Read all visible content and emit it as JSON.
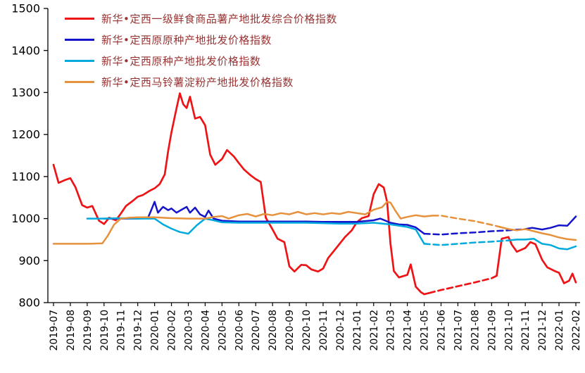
{
  "chart_data": {
    "type": "line",
    "title": "",
    "legend_position": "top-left",
    "grid": false,
    "x_labels": [
      "2019-07",
      "2019-08",
      "2019-09",
      "2019-10",
      "2019-11",
      "2019-12",
      "2020-01",
      "2020-02",
      "2020-03",
      "2020-04",
      "2020-05",
      "2020-06",
      "2020-07",
      "2020-08",
      "2020-09",
      "2020-10",
      "2020-11",
      "2020-12",
      "2021-01",
      "2021-02",
      "2021-03",
      "2021-04",
      "2021-05",
      "2021-06",
      "2021-07",
      "2021-08",
      "2021-09",
      "2021-10",
      "2021-11",
      "2021-12",
      "2022-01",
      "2022-02"
    ],
    "y_axis": {
      "min": 800,
      "max": 1500,
      "step": 100
    },
    "series": [
      {
        "name": "新华•定西一级鲜食商品薯产地批发综合价格指数",
        "color": "#ee1416",
        "width": 2.7,
        "dash_ranges": [
          [
            22.3,
            26.3
          ]
        ],
        "points": [
          [
            0,
            1128
          ],
          [
            0.3,
            1085
          ],
          [
            0.7,
            1092
          ],
          [
            1,
            1096
          ],
          [
            1.3,
            1075
          ],
          [
            1.7,
            1032
          ],
          [
            2,
            1026
          ],
          [
            2.3,
            1030
          ],
          [
            2.7,
            995
          ],
          [
            3,
            987
          ],
          [
            3.3,
            1002
          ],
          [
            3.7,
            996
          ],
          [
            4,
            1012
          ],
          [
            4.3,
            1030
          ],
          [
            4.7,
            1042
          ],
          [
            5,
            1052
          ],
          [
            5.3,
            1056
          ],
          [
            5.7,
            1066
          ],
          [
            6,
            1072
          ],
          [
            6.3,
            1082
          ],
          [
            6.6,
            1105
          ],
          [
            6.8,
            1160
          ],
          [
            7,
            1205
          ],
          [
            7.3,
            1262
          ],
          [
            7.5,
            1298
          ],
          [
            7.7,
            1272
          ],
          [
            7.9,
            1263
          ],
          [
            8.1,
            1290
          ],
          [
            8.4,
            1238
          ],
          [
            8.7,
            1242
          ],
          [
            9,
            1222
          ],
          [
            9.3,
            1152
          ],
          [
            9.6,
            1128
          ],
          [
            10,
            1142
          ],
          [
            10.3,
            1163
          ],
          [
            10.7,
            1148
          ],
          [
            11,
            1132
          ],
          [
            11.3,
            1117
          ],
          [
            11.7,
            1103
          ],
          [
            12,
            1094
          ],
          [
            12.3,
            1087
          ],
          [
            12.6,
            1002
          ],
          [
            13,
            974
          ],
          [
            13.3,
            952
          ],
          [
            13.7,
            944
          ],
          [
            14,
            886
          ],
          [
            14.3,
            874
          ],
          [
            14.7,
            890
          ],
          [
            15,
            889
          ],
          [
            15.3,
            879
          ],
          [
            15.7,
            874
          ],
          [
            16,
            881
          ],
          [
            16.3,
            906
          ],
          [
            16.7,
            926
          ],
          [
            17,
            941
          ],
          [
            17.3,
            956
          ],
          [
            17.7,
            972
          ],
          [
            18,
            991
          ],
          [
            18.3,
            1001
          ],
          [
            18.7,
            1006
          ],
          [
            19,
            1058
          ],
          [
            19.3,
            1082
          ],
          [
            19.6,
            1074
          ],
          [
            19.8,
            1040
          ],
          [
            20,
            940
          ],
          [
            20.2,
            875
          ],
          [
            20.5,
            860
          ],
          [
            21,
            866
          ],
          [
            21.2,
            891
          ],
          [
            21.5,
            838
          ],
          [
            21.8,
            825
          ],
          [
            22,
            820
          ],
          [
            22.3,
            823
          ],
          [
            23,
            830
          ],
          [
            24,
            839
          ],
          [
            25,
            848
          ],
          [
            26,
            858
          ],
          [
            26.3,
            864
          ],
          [
            26.6,
            952
          ],
          [
            27,
            956
          ],
          [
            27.2,
            938
          ],
          [
            27.5,
            921
          ],
          [
            28,
            930
          ],
          [
            28.3,
            944
          ],
          [
            28.6,
            939
          ],
          [
            29,
            902
          ],
          [
            29.3,
            884
          ],
          [
            29.7,
            876
          ],
          [
            30,
            871
          ],
          [
            30.3,
            846
          ],
          [
            30.6,
            852
          ],
          [
            30.8,
            869
          ],
          [
            31,
            848
          ]
        ]
      },
      {
        "name": "新华•定西原原种产地批发价格指数",
        "color": "#1414cc",
        "width": 2.5,
        "dash_ranges": [
          [
            22,
            28
          ]
        ],
        "points": [
          [
            3,
            1000
          ],
          [
            4,
            1000
          ],
          [
            5,
            1000
          ],
          [
            5.6,
            1001
          ],
          [
            5.8,
            1020
          ],
          [
            6,
            1040
          ],
          [
            6.2,
            1014
          ],
          [
            6.5,
            1028
          ],
          [
            6.8,
            1020
          ],
          [
            7,
            1024
          ],
          [
            7.3,
            1014
          ],
          [
            7.6,
            1021
          ],
          [
            7.9,
            1028
          ],
          [
            8.1,
            1014
          ],
          [
            8.4,
            1026
          ],
          [
            8.7,
            1010
          ],
          [
            9,
            1004
          ],
          [
            9.2,
            1019
          ],
          [
            9.5,
            1000
          ],
          [
            10,
            995
          ],
          [
            11,
            993
          ],
          [
            12,
            993
          ],
          [
            13,
            993
          ],
          [
            14,
            993
          ],
          [
            15,
            993
          ],
          [
            16,
            992
          ],
          [
            17,
            992
          ],
          [
            18,
            992
          ],
          [
            19,
            996
          ],
          [
            19.4,
            1000
          ],
          [
            20,
            990
          ],
          [
            20.5,
            986
          ],
          [
            21,
            985
          ],
          [
            21.5,
            979
          ],
          [
            22,
            964
          ],
          [
            23,
            962
          ],
          [
            24,
            965
          ],
          [
            25,
            967
          ],
          [
            26,
            970
          ],
          [
            27,
            972
          ],
          [
            28,
            975
          ],
          [
            28.4,
            978
          ],
          [
            29,
            974
          ],
          [
            29.5,
            978
          ],
          [
            30,
            984
          ],
          [
            30.5,
            983
          ],
          [
            31,
            1005
          ]
        ]
      },
      {
        "name": "新华•定西原种产地批发价格指数",
        "color": "#00aadd",
        "width": 2.5,
        "dash_ranges": [
          [
            22,
            27
          ]
        ],
        "points": [
          [
            2,
            1000
          ],
          [
            3,
            1000
          ],
          [
            4,
            1001
          ],
          [
            5,
            1000
          ],
          [
            6,
            1000
          ],
          [
            6.5,
            986
          ],
          [
            7,
            976
          ],
          [
            7.5,
            968
          ],
          [
            8,
            964
          ],
          [
            8.5,
            984
          ],
          [
            9,
            1000
          ],
          [
            9.5,
            996
          ],
          [
            10,
            991
          ],
          [
            11,
            990
          ],
          [
            12,
            990
          ],
          [
            13,
            990
          ],
          [
            14,
            990
          ],
          [
            15,
            990
          ],
          [
            16,
            989
          ],
          [
            17,
            988
          ],
          [
            18,
            988
          ],
          [
            19,
            990
          ],
          [
            20,
            986
          ],
          [
            21,
            980
          ],
          [
            21.5,
            974
          ],
          [
            22,
            940
          ],
          [
            23,
            937
          ],
          [
            24,
            940
          ],
          [
            25,
            943
          ],
          [
            26,
            945
          ],
          [
            27,
            948
          ],
          [
            27.5,
            950
          ],
          [
            28,
            950
          ],
          [
            28.5,
            952
          ],
          [
            29,
            940
          ],
          [
            29.5,
            937
          ],
          [
            30,
            929
          ],
          [
            30.5,
            927
          ],
          [
            31,
            934
          ]
        ]
      },
      {
        "name": "新华•定西马铃薯淀粉产地批发价格指数",
        "color": "#e6913c",
        "width": 2.5,
        "dash_ranges": [
          [
            22.5,
            26.5
          ]
        ],
        "points": [
          [
            0,
            940
          ],
          [
            1,
            940
          ],
          [
            2,
            940
          ],
          [
            2.9,
            941
          ],
          [
            3.2,
            958
          ],
          [
            3.6,
            986
          ],
          [
            4,
            1000
          ],
          [
            4.5,
            1002
          ],
          [
            5,
            1003
          ],
          [
            6,
            1003
          ],
          [
            7,
            1001
          ],
          [
            8,
            1000
          ],
          [
            9,
            1000
          ],
          [
            9.5,
            1004
          ],
          [
            10,
            1006
          ],
          [
            10.4,
            1000
          ],
          [
            11,
            1008
          ],
          [
            11.5,
            1011
          ],
          [
            12,
            1005
          ],
          [
            12.5,
            1011
          ],
          [
            13,
            1008
          ],
          [
            13.5,
            1013
          ],
          [
            14,
            1010
          ],
          [
            14.5,
            1016
          ],
          [
            15,
            1010
          ],
          [
            15.5,
            1013
          ],
          [
            16,
            1010
          ],
          [
            16.5,
            1013
          ],
          [
            17,
            1011
          ],
          [
            17.5,
            1016
          ],
          [
            18,
            1013
          ],
          [
            18.5,
            1010
          ],
          [
            19,
            1021
          ],
          [
            19.5,
            1027
          ],
          [
            19.8,
            1040
          ],
          [
            20,
            1038
          ],
          [
            20.3,
            1018
          ],
          [
            20.6,
            1000
          ],
          [
            21,
            1004
          ],
          [
            21.5,
            1008
          ],
          [
            22,
            1005
          ],
          [
            22.5,
            1007
          ],
          [
            23,
            1007
          ],
          [
            24,
            1000
          ],
          [
            25,
            994
          ],
          [
            26,
            985
          ],
          [
            26.5,
            980
          ],
          [
            27,
            975
          ],
          [
            27.5,
            972
          ],
          [
            28,
            975
          ],
          [
            28.5,
            970
          ],
          [
            29,
            965
          ],
          [
            29.5,
            961
          ],
          [
            30,
            955
          ],
          [
            30.5,
            951
          ],
          [
            31,
            949
          ]
        ]
      }
    ]
  },
  "colors": {
    "background": "#ffffff",
    "axis": "#000000",
    "axis_label_text": "#000000",
    "legend_text": "#993333"
  }
}
